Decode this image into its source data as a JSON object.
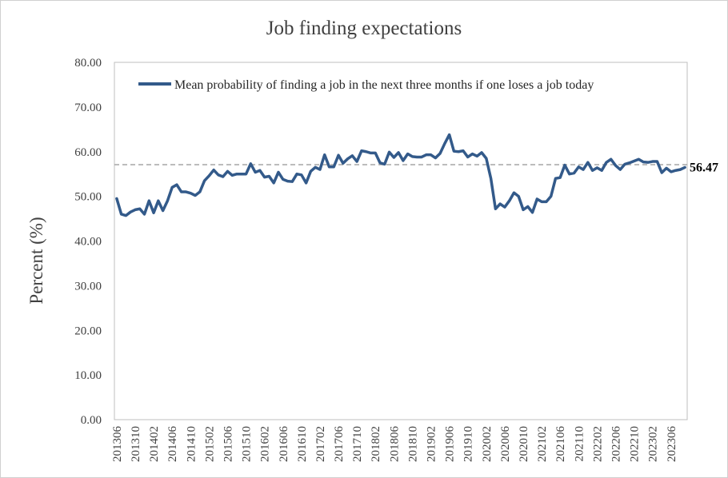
{
  "chart_data": {
    "type": "line",
    "title": "Job finding expectations",
    "ylabel": "Percent (%)",
    "xlabel": "",
    "ylim": [
      0,
      80
    ],
    "yticks": [
      "0.00",
      "10.00",
      "20.00",
      "30.00",
      "40.00",
      "50.00",
      "60.00",
      "70.00",
      "80.00"
    ],
    "xtick_labels": [
      "201306",
      "201310",
      "201402",
      "201406",
      "201410",
      "201502",
      "201506",
      "201510",
      "201602",
      "201606",
      "201610",
      "201702",
      "201706",
      "201710",
      "201802",
      "201806",
      "201810",
      "201902",
      "201906",
      "201910",
      "202002",
      "202006",
      "202010",
      "202102",
      "202106",
      "202110",
      "202202",
      "202206",
      "202210",
      "202302",
      "202306"
    ],
    "legend": "top-right",
    "grid": false,
    "colors": {
      "line": "#335a8a",
      "reference": "#a6a6a6"
    },
    "reference_line": {
      "value": 57.1,
      "style": "dashed"
    },
    "end_label": "56.47",
    "series": [
      {
        "name": "Mean probability of finding a job in the next three months if one loses a job today",
        "x": [
          "201306",
          "201307",
          "201308",
          "201309",
          "201310",
          "201311",
          "201312",
          "201401",
          "201402",
          "201403",
          "201404",
          "201405",
          "201406",
          "201407",
          "201408",
          "201409",
          "201410",
          "201411",
          "201412",
          "201501",
          "201502",
          "201503",
          "201504",
          "201505",
          "201506",
          "201507",
          "201508",
          "201509",
          "201510",
          "201511",
          "201512",
          "201601",
          "201602",
          "201603",
          "201604",
          "201605",
          "201606",
          "201607",
          "201608",
          "201609",
          "201610",
          "201611",
          "201612",
          "201701",
          "201702",
          "201703",
          "201704",
          "201705",
          "201706",
          "201707",
          "201708",
          "201709",
          "201710",
          "201711",
          "201712",
          "201801",
          "201802",
          "201803",
          "201804",
          "201805",
          "201806",
          "201807",
          "201808",
          "201809",
          "201810",
          "201811",
          "201812",
          "201901",
          "201902",
          "201903",
          "201904",
          "201905",
          "201906",
          "201907",
          "201908",
          "201909",
          "201910",
          "201911",
          "201912",
          "202001",
          "202002",
          "202003",
          "202004",
          "202005",
          "202006",
          "202007",
          "202008",
          "202009",
          "202010",
          "202011",
          "202012",
          "202101",
          "202102",
          "202103",
          "202104",
          "202105",
          "202106",
          "202107",
          "202108",
          "202109",
          "202110",
          "202111",
          "202112",
          "202201",
          "202202",
          "202203",
          "202204",
          "202205",
          "202206",
          "202207",
          "202208",
          "202209",
          "202210",
          "202211",
          "202212",
          "202301",
          "202302",
          "202303",
          "202304",
          "202305",
          "202306",
          "202307",
          "202308",
          "202309"
        ],
        "values": [
          49.5,
          46.0,
          45.7,
          46.5,
          47.0,
          47.2,
          46.0,
          49.0,
          46.3,
          49.0,
          46.8,
          49.0,
          52.0,
          52.6,
          51.0,
          51.0,
          50.7,
          50.2,
          51.0,
          53.5,
          54.6,
          55.9,
          54.8,
          54.4,
          55.6,
          54.7,
          55.0,
          55.0,
          55.0,
          57.3,
          55.4,
          55.8,
          54.3,
          54.5,
          53.0,
          55.4,
          53.8,
          53.4,
          53.3,
          55.0,
          54.8,
          53.0,
          55.6,
          56.5,
          56.0,
          59.3,
          56.6,
          56.6,
          59.2,
          57.4,
          58.4,
          59.1,
          57.8,
          60.2,
          60.0,
          59.7,
          59.7,
          57.5,
          57.2,
          59.9,
          58.7,
          59.8,
          58.0,
          59.5,
          58.9,
          58.8,
          58.8,
          59.3,
          59.3,
          58.6,
          59.6,
          61.8,
          63.8,
          60.1,
          60.0,
          60.2,
          58.8,
          59.5,
          59.0,
          59.8,
          58.5,
          54.0,
          47.2,
          48.3,
          47.6,
          49.0,
          50.8,
          50.0,
          47.0,
          47.7,
          46.4,
          49.4,
          48.8,
          48.8,
          50.0,
          54.0,
          54.2,
          57.0,
          55.0,
          55.2,
          56.6,
          56.0,
          57.6,
          55.8,
          56.4,
          55.8,
          57.6,
          58.3,
          56.9,
          56.0,
          57.2,
          57.5,
          57.9,
          58.3,
          57.7,
          57.6,
          57.8,
          57.8,
          55.3,
          56.3,
          55.5,
          55.8,
          56.0,
          56.47
        ]
      }
    ]
  }
}
